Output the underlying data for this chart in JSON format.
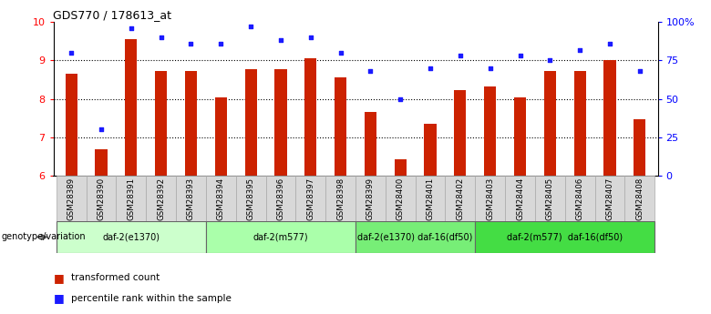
{
  "title": "GDS770 / 178613_at",
  "categories": [
    "GSM28389",
    "GSM28390",
    "GSM28391",
    "GSM28392",
    "GSM28393",
    "GSM28394",
    "GSM28395",
    "GSM28396",
    "GSM28397",
    "GSM28398",
    "GSM28399",
    "GSM28400",
    "GSM28401",
    "GSM28402",
    "GSM28403",
    "GSM28404",
    "GSM28405",
    "GSM28406",
    "GSM28407",
    "GSM28408"
  ],
  "bar_values": [
    8.65,
    6.68,
    9.55,
    8.73,
    8.73,
    8.05,
    8.78,
    8.78,
    9.05,
    8.57,
    7.65,
    6.44,
    7.35,
    8.22,
    8.33,
    8.05,
    8.72,
    8.72,
    9.0,
    7.48
  ],
  "dot_values_pct": [
    80,
    30,
    96,
    90,
    86,
    86,
    97,
    88,
    90,
    80,
    68,
    50,
    70,
    78,
    70,
    78,
    75,
    82,
    86,
    68
  ],
  "bar_color": "#cc2200",
  "dot_color": "#1a1aff",
  "ylim_left": [
    6,
    10
  ],
  "ylim_right": [
    0,
    100
  ],
  "yticks_left": [
    6,
    7,
    8,
    9,
    10
  ],
  "yticks_right": [
    0,
    25,
    50,
    75,
    100
  ],
  "yticklabels_right": [
    "0",
    "25",
    "50",
    "75",
    "100%"
  ],
  "groups": [
    {
      "label": "daf-2(e1370)",
      "start": 0,
      "end": 4,
      "color": "#ccffcc"
    },
    {
      "label": "daf-2(m577)",
      "start": 5,
      "end": 9,
      "color": "#aaffaa"
    },
    {
      "label": "daf-2(e1370) daf-16(df50)",
      "start": 10,
      "end": 13,
      "color": "#77ee77"
    },
    {
      "label": "daf-2(m577)  daf-16(df50)",
      "start": 14,
      "end": 19,
      "color": "#44dd44"
    }
  ],
  "genotype_label": "genotype/variation",
  "legend_bar": "transformed count",
  "legend_dot": "percentile rank within the sample",
  "bar_width": 0.4
}
